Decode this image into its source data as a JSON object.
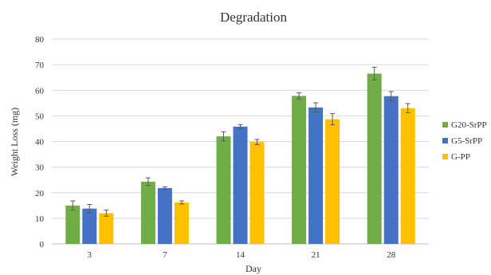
{
  "chart_data": {
    "type": "bar",
    "title": "Degradation",
    "xlabel": "Day",
    "ylabel": "Weight Loss (mg)",
    "ylim": [
      0,
      80
    ],
    "yticks": [
      0,
      10,
      20,
      30,
      40,
      50,
      60,
      70,
      80
    ],
    "categories": [
      "3",
      "7",
      "14",
      "21",
      "28"
    ],
    "grid": true,
    "legend_position": "right",
    "series": [
      {
        "name": "G20-SrPP",
        "color": "#70ad47",
        "values": [
          15.0,
          24.3,
          42.0,
          57.8,
          66.5
        ],
        "errors": [
          1.8,
          1.5,
          1.8,
          1.2,
          2.5
        ]
      },
      {
        "name": "G5-SrPP",
        "color": "#4472c4",
        "values": [
          13.8,
          21.8,
          45.8,
          53.3,
          57.7
        ],
        "errors": [
          1.6,
          0.5,
          0.8,
          1.8,
          1.8
        ]
      },
      {
        "name": "G-PP",
        "color": "#ffc000",
        "values": [
          12.0,
          16.2,
          39.8,
          48.7,
          53.0
        ],
        "errors": [
          1.2,
          0.6,
          1.0,
          2.2,
          1.8
        ]
      }
    ]
  }
}
